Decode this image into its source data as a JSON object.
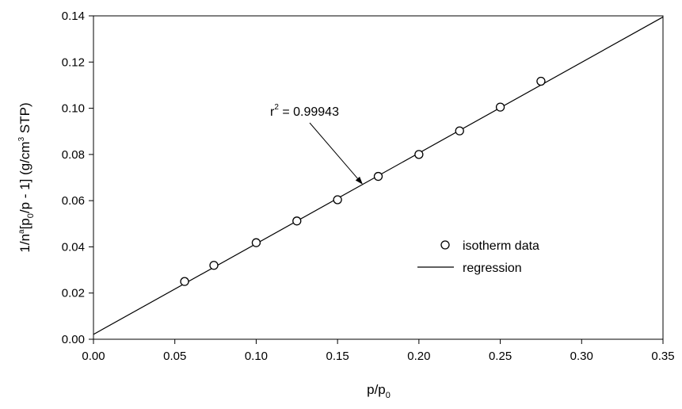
{
  "chart_data": {
    "type": "scatter",
    "x_axis": {
      "label_main": "p/p",
      "label_sub": "0",
      "range": [
        0,
        0.35
      ],
      "ticks": [
        "0.00",
        "0.05",
        "0.10",
        "0.15",
        "0.20",
        "0.25",
        "0.30",
        "0.35"
      ]
    },
    "y_axis": {
      "label_parts": [
        "1/n",
        "a",
        "[p",
        "0",
        "/p - 1] (g/cm",
        "3",
        " STP)"
      ],
      "range": [
        0,
        0.14
      ],
      "ticks": [
        "0.00",
        "0.02",
        "0.04",
        "0.06",
        "0.08",
        "0.10",
        "0.12",
        "0.14"
      ]
    },
    "series": [
      {
        "name": "isotherm data",
        "kind": "points",
        "marker": "open-circle",
        "x": [
          0.056,
          0.074,
          0.1,
          0.125,
          0.15,
          0.175,
          0.2,
          0.225,
          0.25,
          0.275
        ],
        "y": [
          0.025,
          0.032,
          0.0418,
          0.0512,
          0.0604,
          0.0705,
          0.08,
          0.0902,
          0.1005,
          0.1117
        ]
      },
      {
        "name": "regression",
        "kind": "line",
        "x": [
          0,
          0.35
        ],
        "y": [
          0.0021,
          0.1395
        ]
      }
    ],
    "annotation": {
      "text_main": "r",
      "text_sup": "2",
      "text_rest": " = 0.99943",
      "points_to": {
        "x": 0.1655,
        "y": 0.067
      }
    },
    "legend": {
      "placement": "center-right",
      "entries": [
        {
          "label": "isotherm data",
          "symbol": "open-circle"
        },
        {
          "label": "regression",
          "symbol": "line"
        }
      ]
    },
    "grid": false
  }
}
